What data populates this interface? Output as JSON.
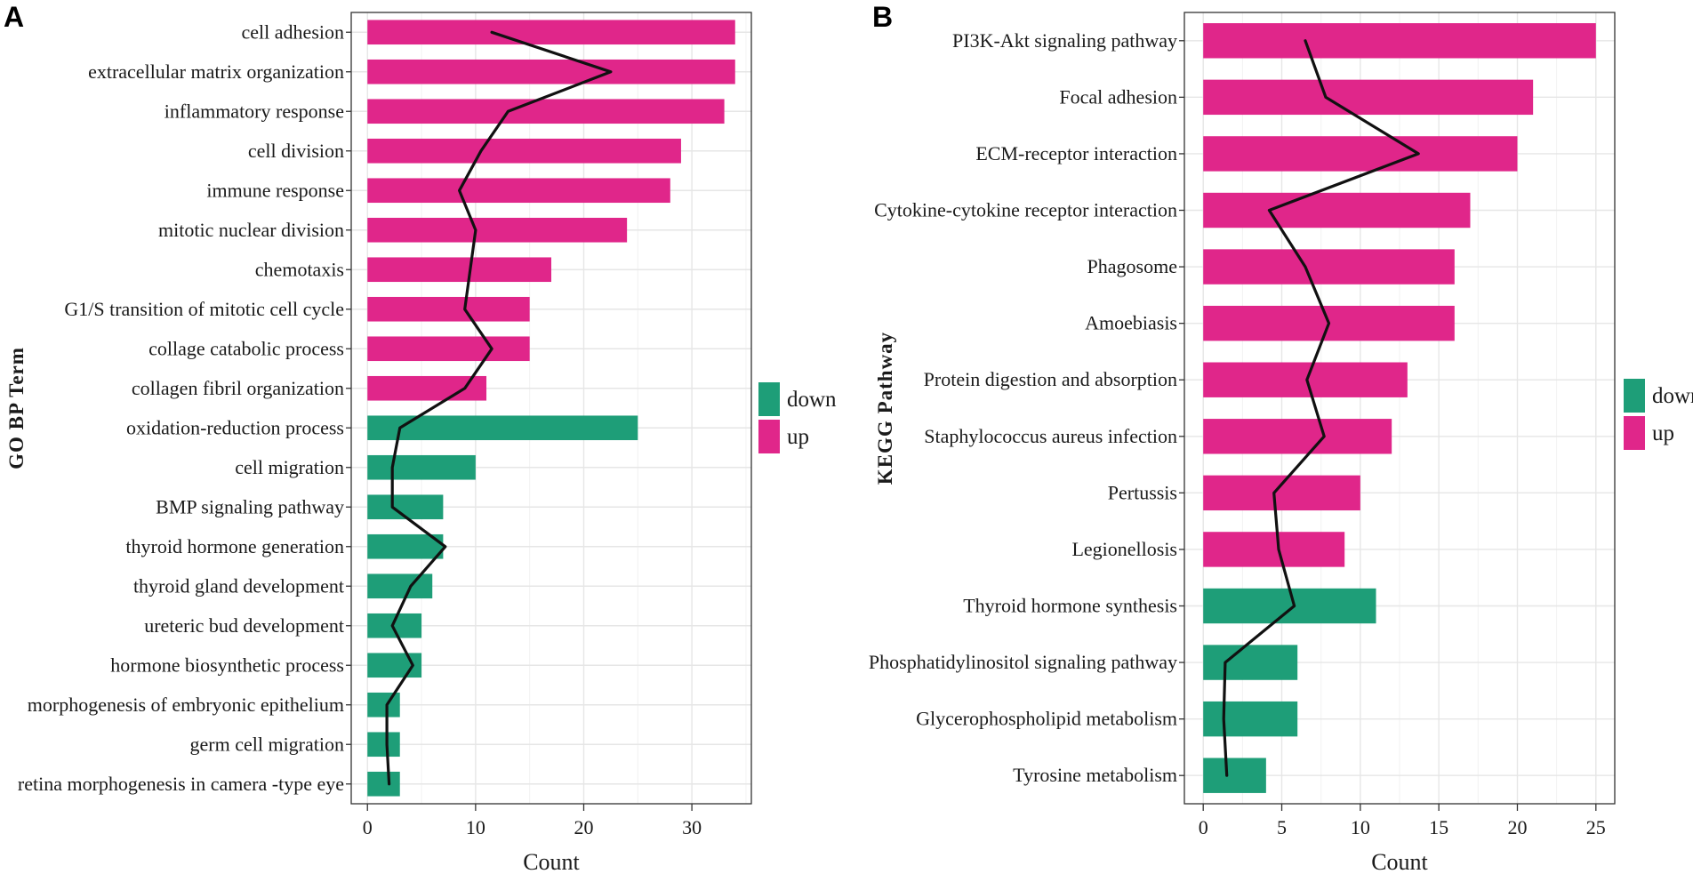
{
  "colors": {
    "up": "#e0268a",
    "down": "#1e9e78",
    "line": "#111111",
    "grid": "#ececec"
  },
  "chart_data": [
    {
      "panel_label": "A",
      "type": "bar",
      "orientation": "horizontal",
      "ylabel": "GO BP Term",
      "xlabel": "Count",
      "xlim": [
        -1.5,
        35.5
      ],
      "xticks": [
        "0",
        "10",
        "20",
        "30"
      ],
      "categories": [
        "cell adhesion",
        "extracellular matrix organization",
        "inflammatory response",
        "cell division",
        "immune response",
        "mitotic nuclear division",
        "chemotaxis",
        "G1/S transition of mitotic cell cycle",
        "collage catabolic process",
        "collagen fibril organization",
        "oxidation-reduction process",
        "cell migration",
        "BMP signaling pathway",
        "thyroid hormone generation",
        "thyroid gland development",
        "ureteric bud development",
        "hormone biosynthetic process",
        "morphogenesis of embryonic epithelium",
        "germ cell migration",
        "retina morphogenesis in camera -type eye"
      ],
      "values": [
        34,
        34,
        33,
        29,
        28,
        24,
        17,
        15,
        15,
        11,
        25,
        10,
        7,
        7,
        6,
        5,
        5,
        3,
        3,
        3
      ],
      "groups": [
        "up",
        "up",
        "up",
        "up",
        "up",
        "up",
        "up",
        "up",
        "up",
        "up",
        "down",
        "down",
        "down",
        "down",
        "down",
        "down",
        "down",
        "down",
        "down",
        "down"
      ],
      "line_values": [
        11.5,
        22.5,
        13,
        10.5,
        8.5,
        10,
        9.5,
        9,
        11.5,
        9,
        3,
        2.3,
        2.3,
        7.2,
        4,
        2.3,
        4.2,
        1.8,
        1.8,
        2
      ],
      "legend": [
        {
          "key": "down",
          "label": "down"
        },
        {
          "key": "up",
          "label": "up"
        }
      ]
    },
    {
      "panel_label": "B",
      "type": "bar",
      "orientation": "horizontal",
      "ylabel": "KEGG Pathway",
      "xlabel": "Count",
      "xlim": [
        -1.2,
        26.2
      ],
      "xticks": [
        "0",
        "5",
        "10",
        "15",
        "20",
        "25"
      ],
      "categories": [
        "PI3K-Akt signaling pathway",
        "Focal adhesion",
        "ECM-receptor interaction",
        "Cytokine-cytokine receptor interaction",
        "Phagosome",
        "Amoebiasis",
        "Protein digestion and absorption",
        "Staphylococcus aureus infection",
        "Pertussis",
        "Legionellosis",
        "Thyroid hormone synthesis",
        "Phosphatidylinositol signaling pathway",
        "Glycerophospholipid metabolism",
        "Tyrosine metabolism"
      ],
      "values": [
        25,
        21,
        20,
        17,
        16,
        16,
        13,
        12,
        10,
        9,
        11,
        6,
        6,
        4
      ],
      "groups": [
        "up",
        "up",
        "up",
        "up",
        "up",
        "up",
        "up",
        "up",
        "up",
        "up",
        "down",
        "down",
        "down",
        "down"
      ],
      "line_values": [
        6.5,
        7.8,
        13.7,
        4.2,
        6.5,
        8,
        6.6,
        7.7,
        4.5,
        4.8,
        5.8,
        1.4,
        1.3,
        1.5
      ],
      "legend": [
        {
          "key": "down",
          "label": "down"
        },
        {
          "key": "up",
          "label": "up"
        }
      ]
    }
  ]
}
